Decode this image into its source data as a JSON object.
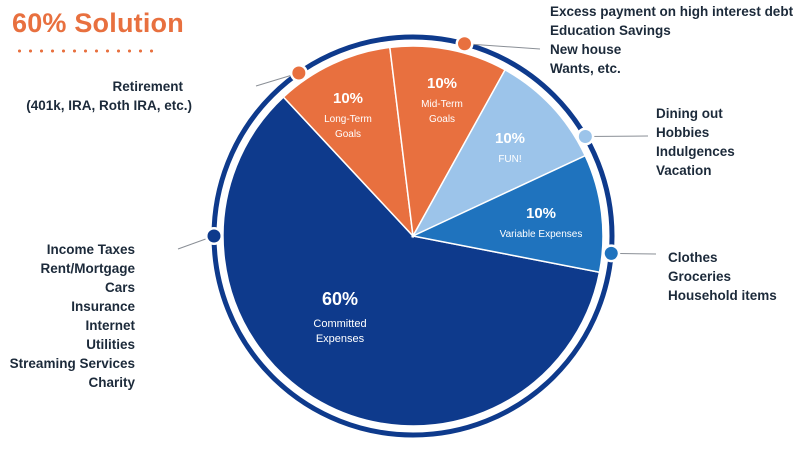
{
  "title": "60% Solution",
  "colors": {
    "title": "#E8703F",
    "committed": "#0E3A8C",
    "variable": "#1F73BE",
    "fun": "#9CC4EA",
    "orange": "#E8703F",
    "leader": "#8a8f96"
  },
  "chart_data": {
    "type": "pie",
    "slices": [
      {
        "value": 60,
        "pct_label": "60%",
        "name_lines": [
          "Committed",
          "Expenses"
        ],
        "color": "#0E3A8C",
        "details": [
          "Income Taxes",
          "Rent/Mortgage",
          "Cars",
          "Insurance",
          "Internet",
          "Utilities",
          "Streaming Services",
          "Charity"
        ]
      },
      {
        "value": 10,
        "pct_label": "10%",
        "name_lines": [
          "Long-Term",
          "Goals"
        ],
        "color": "#E8703F",
        "details": [
          "Retirement",
          "(401k, IRA, Roth IRA, etc.)"
        ]
      },
      {
        "value": 10,
        "pct_label": "10%",
        "name_lines": [
          "Mid-Term",
          "Goals"
        ],
        "color": "#E8703F",
        "details": [
          "Excess payment on high interest debt",
          "Education Savings",
          "New house",
          "Wants, etc."
        ]
      },
      {
        "value": 10,
        "pct_label": "10%",
        "name_lines": [
          "FUN!"
        ],
        "color": "#9CC4EA",
        "details": [
          "Dining out",
          "Hobbies",
          "Indulgences",
          "Vacation"
        ]
      },
      {
        "value": 10,
        "pct_label": "10%",
        "name_lines": [
          "Variable Expenses"
        ],
        "color": "#1F73BE",
        "details": [
          "Clothes",
          "Groceries",
          "Household items"
        ]
      }
    ]
  }
}
